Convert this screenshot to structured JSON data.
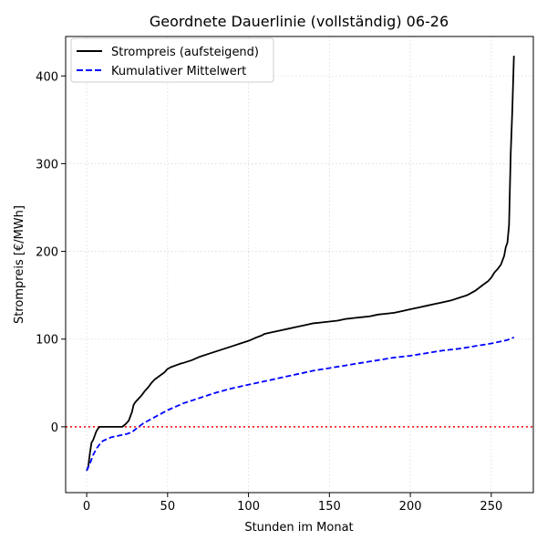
{
  "chart_data": {
    "type": "line",
    "title": "Geordnete Dauerlinie (vollständig) 06-26",
    "xlabel": "Stunden im Monat",
    "ylabel": "Strompreis [€/MWh]",
    "xlim": [
      -13,
      276
    ],
    "ylim": [
      -75,
      445
    ],
    "xticks": [
      0,
      50,
      100,
      150,
      200,
      250
    ],
    "yticks": [
      0,
      100,
      200,
      300,
      400
    ],
    "grid": true,
    "legend_position": "top-left",
    "zero_line": {
      "y": 0,
      "color": "#ff0000",
      "style": "dotted"
    },
    "series": [
      {
        "name": "Strompreis (aufsteigend)",
        "color": "#000000",
        "style": "solid",
        "x": [
          0,
          1,
          2,
          3,
          4,
          5,
          6,
          7,
          8,
          9,
          10,
          15,
          20,
          22,
          24,
          26,
          27,
          28,
          29,
          30,
          32,
          34,
          36,
          38,
          40,
          42,
          45,
          48,
          50,
          52,
          55,
          58,
          60,
          65,
          70,
          75,
          80,
          85,
          90,
          95,
          100,
          105,
          108,
          110,
          115,
          120,
          125,
          130,
          135,
          140,
          145,
          150,
          155,
          160,
          165,
          170,
          175,
          180,
          185,
          190,
          195,
          200,
          205,
          210,
          215,
          220,
          225,
          230,
          235,
          240,
          245,
          248,
          250,
          252,
          254,
          256,
          257,
          258,
          259,
          260,
          261,
          262,
          263,
          264
        ],
        "values": [
          -50,
          -45,
          -30,
          -18,
          -15,
          -10,
          -5,
          -2,
          0,
          0,
          0,
          0,
          0,
          0,
          3,
          7,
          12,
          17,
          25,
          28,
          32,
          36,
          41,
          45,
          50,
          54,
          58,
          62,
          66,
          68,
          70,
          72,
          73,
          76,
          80,
          83,
          86,
          89,
          92,
          95,
          98,
          102,
          104,
          106,
          108,
          110,
          112,
          114,
          116,
          118,
          119,
          120,
          121,
          123,
          124,
          125,
          126,
          128,
          129,
          130,
          132,
          134,
          136,
          138,
          140,
          142,
          144,
          147,
          150,
          155,
          162,
          166,
          170,
          176,
          180,
          185,
          190,
          195,
          205,
          210,
          230,
          310,
          360,
          423
        ]
      },
      {
        "name": "Kumulativer Mittelwert",
        "color": "#0000ff",
        "style": "dashed",
        "x": [
          0,
          2,
          4,
          6,
          8,
          10,
          15,
          20,
          25,
          28,
          30,
          35,
          40,
          45,
          50,
          60,
          70,
          80,
          90,
          100,
          110,
          120,
          130,
          140,
          150,
          160,
          170,
          180,
          190,
          200,
          210,
          220,
          230,
          240,
          250,
          255,
          260,
          264
        ],
        "values": [
          -50,
          -42,
          -32,
          -25,
          -20,
          -16,
          -12,
          -10,
          -8,
          -6,
          -3,
          4,
          9,
          14,
          19,
          27,
          33,
          39,
          44,
          48,
          52,
          56,
          60,
          64,
          67,
          70,
          73,
          76,
          79,
          81,
          84,
          87,
          89,
          92,
          95,
          97,
          99,
          102
        ]
      }
    ]
  }
}
